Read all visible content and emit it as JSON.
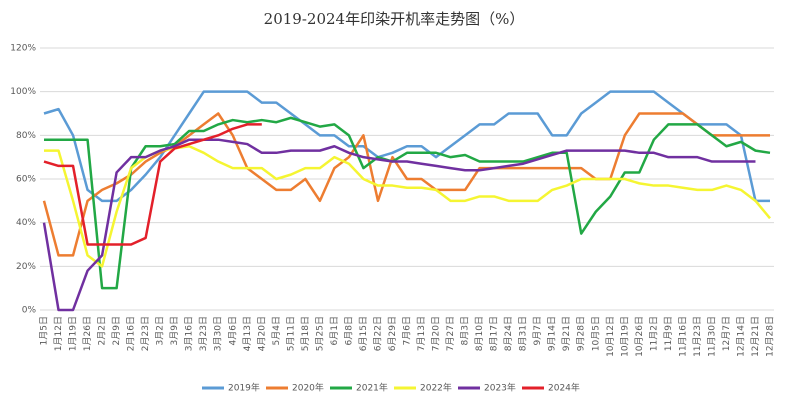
{
  "chart_data": {
    "type": "line",
    "title": "2019-2024年印染开机率走势图（%）",
    "categories": [
      "1月5日",
      "1月12日",
      "1月19日",
      "1月26日",
      "2月2日",
      "2月9日",
      "2月16日",
      "2月23日",
      "3月2日",
      "3月9日",
      "3月16日",
      "3月23日",
      "3月30日",
      "4月6日",
      "4月13日",
      "4月20日",
      "5月4日",
      "5月11日",
      "5月18日",
      "5月25日",
      "6月1日",
      "6月8日",
      "6月15日",
      "6月22日",
      "6月29日",
      "7月6日",
      "7月13日",
      "7月20日",
      "7月27日",
      "8月3日",
      "8月10日",
      "8月17日",
      "8月24日",
      "8月31日",
      "9月7日",
      "9月14日",
      "9月21日",
      "9月28日",
      "10月5日",
      "10月12日",
      "10月19日",
      "10月26日",
      "11月2日",
      "11月9日",
      "11月16日",
      "11月23日",
      "11月30日",
      "12月7日",
      "12月14日",
      "12月21日",
      "12月28日"
    ],
    "ylim": [
      0,
      120
    ],
    "yticks": [
      {
        "value": 0,
        "label": "0%"
      },
      {
        "value": 20,
        "label": "20%"
      },
      {
        "value": 40,
        "label": "40%"
      },
      {
        "value": 60,
        "label": "60%"
      },
      {
        "value": 80,
        "label": "80%"
      },
      {
        "value": 100,
        "label": "100%"
      },
      {
        "value": 120,
        "label": "120%"
      }
    ],
    "grid": true,
    "series": [
      {
        "name": "2019年",
        "color": "#5b9bd5",
        "values": [
          90,
          92,
          80,
          55,
          50,
          50,
          55,
          62,
          70,
          80,
          90,
          100,
          100,
          100,
          100,
          95,
          95,
          90,
          85,
          80,
          80,
          75,
          75,
          70,
          72,
          75,
          75,
          70,
          75,
          80,
          85,
          85,
          90,
          90,
          90,
          80,
          80,
          90,
          95,
          100,
          100,
          100,
          100,
          95,
          90,
          85,
          85,
          85,
          80,
          50,
          50
        ]
      },
      {
        "name": "2020年",
        "color": "#ed7d31",
        "values": [
          50,
          25,
          25,
          50,
          55,
          58,
          62,
          68,
          72,
          75,
          80,
          85,
          90,
          80,
          65,
          60,
          55,
          55,
          60,
          50,
          65,
          70,
          80,
          50,
          70,
          60,
          60,
          55,
          55,
          55,
          65,
          65,
          65,
          65,
          65,
          65,
          65,
          65,
          60,
          60,
          80,
          90,
          90,
          90,
          90,
          85,
          80,
          80,
          80,
          80,
          80
        ]
      },
      {
        "name": "2021年",
        "color": "#22a845",
        "values": [
          78,
          78,
          78,
          78,
          10,
          10,
          65,
          75,
          75,
          76,
          82,
          82,
          85,
          87,
          86,
          87,
          86,
          88,
          86,
          84,
          85,
          80,
          65,
          70,
          68,
          72,
          72,
          72,
          70,
          71,
          68,
          68,
          68,
          68,
          70,
          72,
          72,
          35,
          45,
          52,
          63,
          63,
          78,
          85,
          85,
          85,
          80,
          75,
          77,
          73,
          72
        ]
      },
      {
        "name": "2022年",
        "color": "#f5f532",
        "values": [
          73,
          73,
          50,
          25,
          20,
          45,
          65,
          70,
          73,
          74,
          75,
          72,
          68,
          65,
          65,
          65,
          60,
          62,
          65,
          65,
          70,
          67,
          60,
          57,
          57,
          56,
          56,
          55,
          50,
          50,
          52,
          52,
          50,
          50,
          50,
          55,
          57,
          60,
          60,
          60,
          60,
          58,
          57,
          57,
          56,
          55,
          55,
          57,
          55,
          50,
          42
        ]
      },
      {
        "name": "2023年",
        "color": "#7030a0",
        "values": [
          40,
          0,
          0,
          18,
          25,
          63,
          70,
          70,
          73,
          75,
          78,
          78,
          78,
          77,
          76,
          72,
          72,
          73,
          73,
          73,
          75,
          72,
          70,
          69,
          68,
          68,
          67,
          66,
          65,
          64,
          64,
          65,
          66,
          67,
          69,
          71,
          73,
          73,
          73,
          73,
          73,
          72,
          72,
          70,
          70,
          70,
          68,
          68,
          68,
          68,
          null
        ]
      },
      {
        "name": "2024年",
        "color": "#e3202a",
        "values": [
          68,
          66,
          66,
          30,
          30,
          30,
          30,
          33,
          68,
          74,
          76,
          78,
          80,
          83,
          85,
          85,
          null,
          null,
          null,
          null,
          null,
          null,
          null,
          null,
          null,
          null,
          null,
          null,
          null,
          null,
          null,
          null,
          null,
          null,
          null,
          null,
          null,
          null,
          null,
          null,
          null,
          null,
          null,
          null,
          null,
          null,
          null,
          null,
          null,
          null,
          null
        ]
      }
    ]
  }
}
